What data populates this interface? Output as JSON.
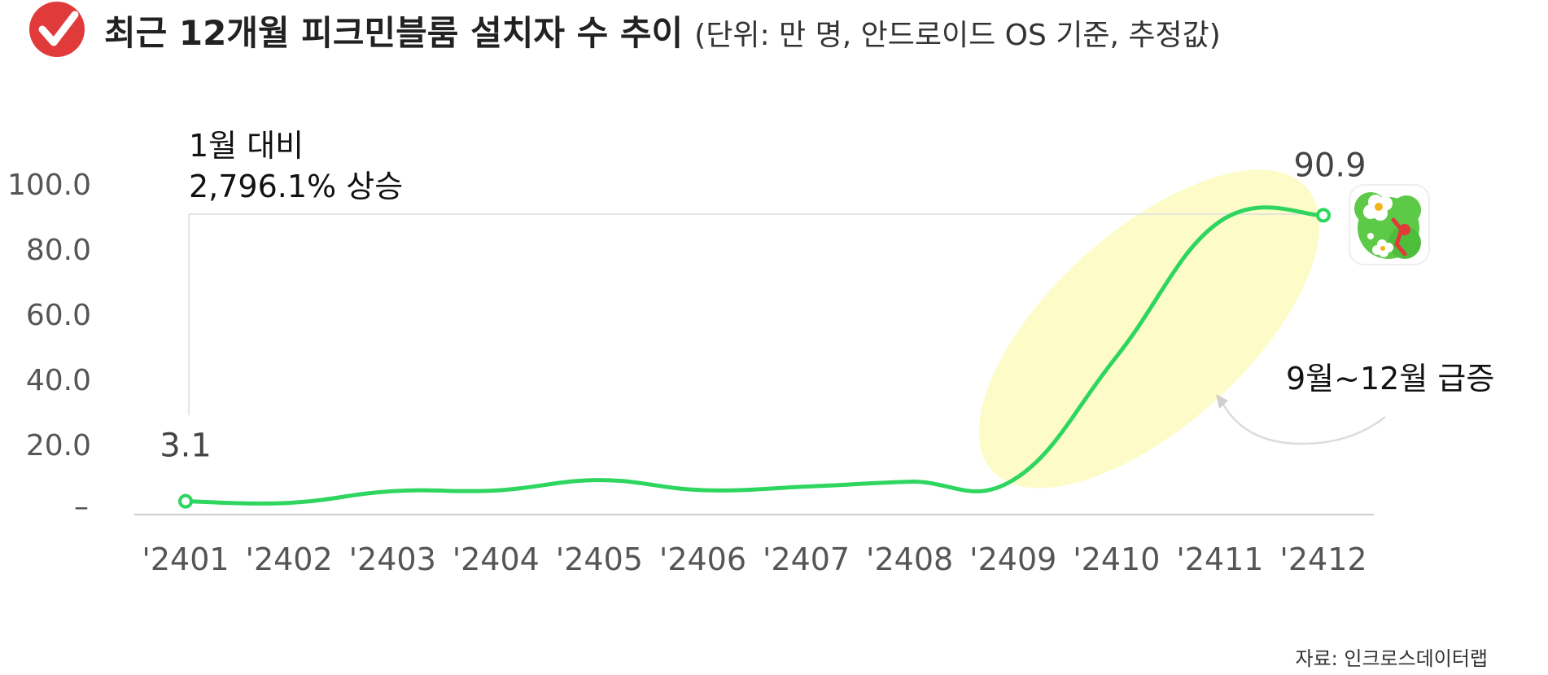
{
  "header": {
    "title": "최근 12개월 피크민블룸 설치자 수 추이",
    "subtitle": "(단위: 만 명, 안드로이드 OS 기준, 추정값)",
    "logo_icon": "red-check-icon"
  },
  "annotations": {
    "growth_line1": "1월 대비",
    "growth_line2": "2,796.1% 상승",
    "surge_note": "9월~12월 급증"
  },
  "source": "자료: 인크로스데이터랩",
  "colors": {
    "line": "#2ed65f",
    "highlight": "#fdfcc9",
    "accent": "#e03a3a",
    "axis_text": "#555555"
  },
  "app_icon": "pikmin-bloom-app-icon",
  "chart_data": {
    "type": "line",
    "categories": [
      "'2401",
      "'2402",
      "'2403",
      "'2404",
      "'2405",
      "'2406",
      "'2407",
      "'2408",
      "'2409",
      "'2410",
      "'2411",
      "'2412"
    ],
    "series": [
      {
        "values": [
          3.1,
          2.6,
          6.2,
          6.4,
          9.6,
          6.5,
          7.6,
          9.1,
          9.6,
          47.5,
          89.0,
          90.9
        ]
      }
    ],
    "y_ticks": [
      "–",
      "20.0",
      "40.0",
      "60.0",
      "80.0",
      "100.0"
    ],
    "ylim": [
      0,
      100
    ],
    "data_labels": {
      "first": "3.1",
      "last": "90.9"
    },
    "grid": false,
    "legend": "none"
  }
}
